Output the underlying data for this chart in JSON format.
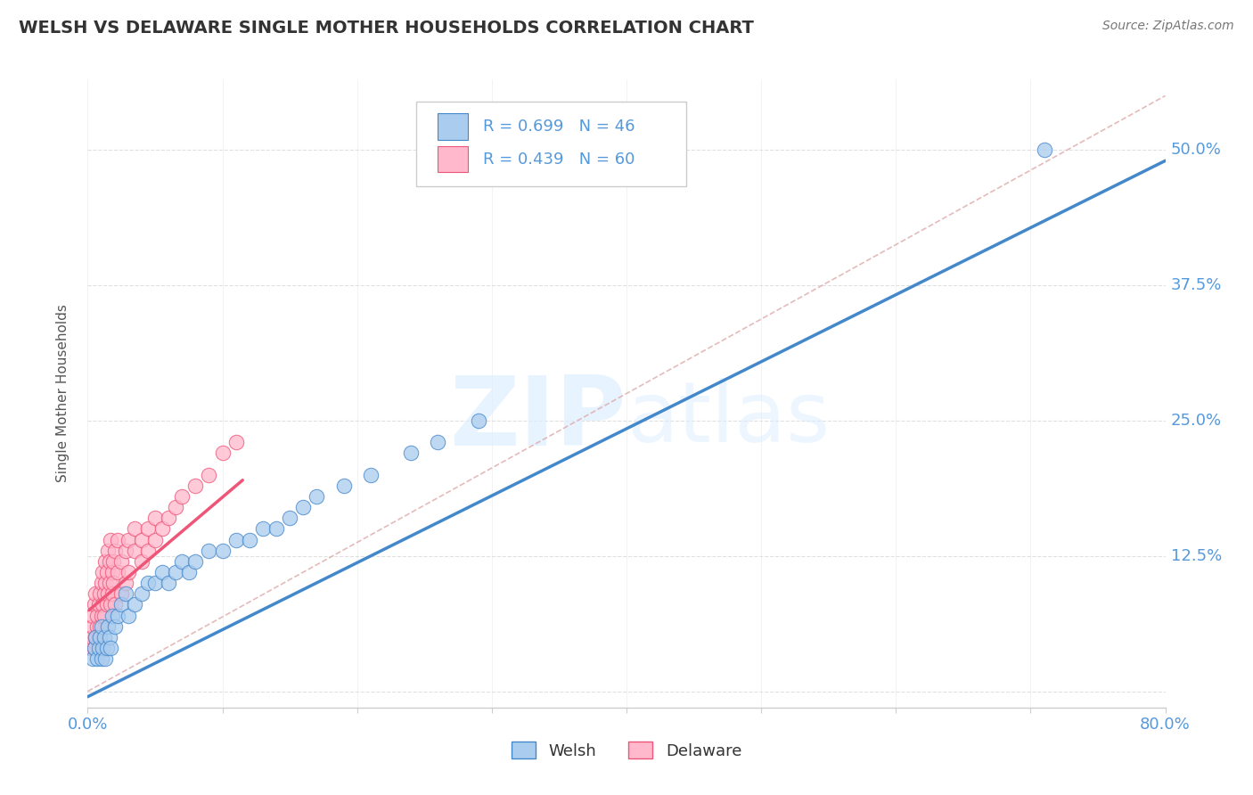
{
  "title": "WELSH VS DELAWARE SINGLE MOTHER HOUSEHOLDS CORRELATION CHART",
  "source": "Source: ZipAtlas.com",
  "ylabel": "Single Mother Households",
  "xlim": [
    0.0,
    0.8
  ],
  "ylim": [
    -0.015,
    0.565
  ],
  "xticks": [
    0.0,
    0.1,
    0.2,
    0.3,
    0.4,
    0.5,
    0.6,
    0.7,
    0.8
  ],
  "xticklabels": [
    "0.0%",
    "",
    "",
    "",
    "",
    "",
    "",
    "",
    "80.0%"
  ],
  "ytick_positions": [
    0.0,
    0.125,
    0.25,
    0.375,
    0.5
  ],
  "ytick_labels": [
    "",
    "12.5%",
    "25.0%",
    "37.5%",
    "50.0%"
  ],
  "welsh_R": 0.699,
  "welsh_N": 46,
  "delaware_R": 0.439,
  "delaware_N": 60,
  "welsh_color": "#aaccee",
  "welsh_line_color": "#4488cc",
  "delaware_color": "#ffb8cc",
  "delaware_line_color": "#ee5577",
  "accent_color": "#5599dd",
  "title_color": "#333333",
  "grid_color": "#dddddd",
  "diag_color": "#ddaaaa",
  "welsh_scatter_x": [
    0.004,
    0.005,
    0.006,
    0.007,
    0.008,
    0.009,
    0.01,
    0.01,
    0.011,
    0.012,
    0.013,
    0.014,
    0.015,
    0.016,
    0.017,
    0.018,
    0.02,
    0.022,
    0.025,
    0.028,
    0.03,
    0.035,
    0.04,
    0.045,
    0.05,
    0.055,
    0.06,
    0.065,
    0.07,
    0.075,
    0.08,
    0.09,
    0.1,
    0.11,
    0.12,
    0.13,
    0.14,
    0.15,
    0.16,
    0.17,
    0.19,
    0.21,
    0.24,
    0.26,
    0.29,
    0.71
  ],
  "welsh_scatter_y": [
    0.03,
    0.04,
    0.05,
    0.03,
    0.04,
    0.05,
    0.06,
    0.03,
    0.04,
    0.05,
    0.03,
    0.04,
    0.06,
    0.05,
    0.04,
    0.07,
    0.06,
    0.07,
    0.08,
    0.09,
    0.07,
    0.08,
    0.09,
    0.1,
    0.1,
    0.11,
    0.1,
    0.11,
    0.12,
    0.11,
    0.12,
    0.13,
    0.13,
    0.14,
    0.14,
    0.15,
    0.15,
    0.16,
    0.17,
    0.18,
    0.19,
    0.2,
    0.22,
    0.23,
    0.25,
    0.5
  ],
  "delaware_scatter_x": [
    0.002,
    0.003,
    0.004,
    0.004,
    0.005,
    0.005,
    0.006,
    0.006,
    0.007,
    0.007,
    0.008,
    0.008,
    0.009,
    0.009,
    0.01,
    0.01,
    0.011,
    0.011,
    0.012,
    0.012,
    0.013,
    0.013,
    0.014,
    0.014,
    0.015,
    0.015,
    0.016,
    0.016,
    0.017,
    0.017,
    0.018,
    0.018,
    0.019,
    0.019,
    0.02,
    0.02,
    0.022,
    0.022,
    0.025,
    0.025,
    0.028,
    0.028,
    0.03,
    0.03,
    0.035,
    0.035,
    0.04,
    0.04,
    0.045,
    0.045,
    0.05,
    0.05,
    0.055,
    0.06,
    0.065,
    0.07,
    0.08,
    0.09,
    0.1,
    0.11
  ],
  "delaware_scatter_y": [
    0.04,
    0.05,
    0.06,
    0.07,
    0.04,
    0.08,
    0.05,
    0.09,
    0.06,
    0.07,
    0.08,
    0.05,
    0.06,
    0.09,
    0.07,
    0.1,
    0.08,
    0.11,
    0.07,
    0.09,
    0.1,
    0.12,
    0.08,
    0.11,
    0.09,
    0.13,
    0.1,
    0.12,
    0.08,
    0.14,
    0.11,
    0.09,
    0.12,
    0.1,
    0.13,
    0.08,
    0.11,
    0.14,
    0.12,
    0.09,
    0.13,
    0.1,
    0.14,
    0.11,
    0.13,
    0.15,
    0.14,
    0.12,
    0.15,
    0.13,
    0.14,
    0.16,
    0.15,
    0.16,
    0.17,
    0.18,
    0.19,
    0.2,
    0.22,
    0.23
  ],
  "welsh_line_x0": 0.0,
  "welsh_line_y0": -0.005,
  "welsh_line_x1": 0.8,
  "welsh_line_y1": 0.49,
  "delaware_line_x0": 0.001,
  "delaware_line_y0": 0.075,
  "delaware_line_x1": 0.115,
  "delaware_line_y1": 0.195
}
